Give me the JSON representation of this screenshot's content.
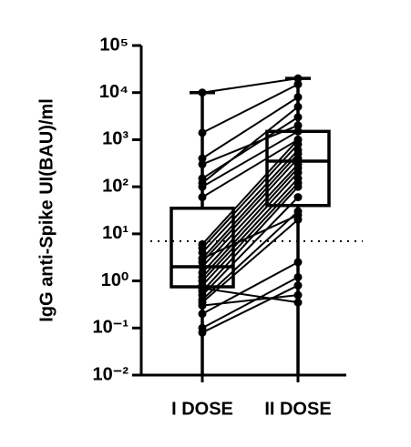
{
  "chart_data": {
    "type": "box",
    "y_label": "IgG anti-Spike UI(BAU)/ml",
    "log_scale": true,
    "ylim": [
      0.01,
      100000
    ],
    "yticks": [
      {
        "value": 100000,
        "label": "10⁵"
      },
      {
        "value": 10000,
        "label": "10⁴"
      },
      {
        "value": 1000,
        "label": "10³"
      },
      {
        "value": 100,
        "label": "10²"
      },
      {
        "value": 10,
        "label": "10¹"
      },
      {
        "value": 1,
        "label": "10⁰"
      },
      {
        "value": 0.1,
        "label": "10⁻¹"
      },
      {
        "value": 0.01,
        "label": "10⁻²"
      }
    ],
    "threshold": 7,
    "color": "#000000",
    "categories": [
      "I DOSE",
      "II DOSE"
    ],
    "boxes": [
      {
        "min": 0.01,
        "q1": 0.75,
        "median": 2,
        "q3": 35,
        "max": 10000
      },
      {
        "min": 0.01,
        "q1": 40,
        "median": 350,
        "q3": 1500,
        "max": 20000
      }
    ],
    "dose1_values": [
      10000,
      1400,
      400,
      150,
      120,
      100,
      6,
      5,
      4,
      3,
      2.5,
      2,
      1.5,
      1.2,
      1,
      0.8,
      0.6,
      0.5,
      0.4,
      0.35,
      0.2,
      0.1,
      0.08,
      0.3,
      0.7,
      3,
      300,
      60
    ],
    "dose2_values": [
      20000,
      15000,
      8000,
      3000,
      5000,
      1500,
      1000,
      800,
      600,
      500,
      400,
      300,
      250,
      200,
      150,
      120,
      100,
      60,
      30,
      20,
      2.5,
      1.2,
      0.8,
      0.5,
      0.35,
      25,
      2000,
      1000
    ]
  }
}
